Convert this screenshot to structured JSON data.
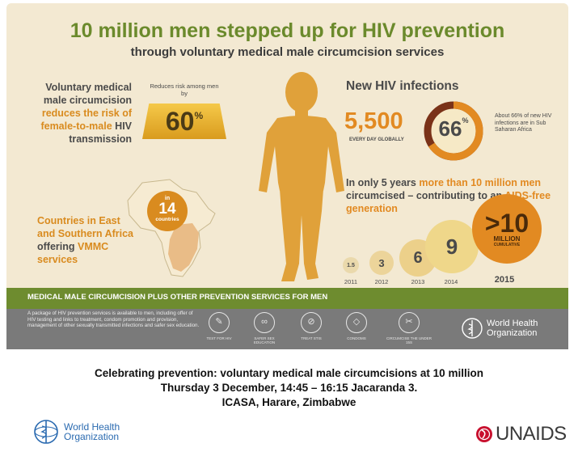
{
  "infographic": {
    "title": "10 million men stepped up for HIV prevention",
    "subtitle": "through voluntary medical male circumcision services",
    "risk": {
      "text_a": "Voluntary medical male circumcision ",
      "text_b": "reduces the risk of female-to-male",
      "text_c": " HIV transmission",
      "caption": "Reduces risk among men by",
      "value": "60",
      "unit": "%"
    },
    "new_hiv": {
      "heading": "New HIV infections",
      "count": "5,500",
      "count_label": "EVERY DAY GLOBALLY",
      "share": "66",
      "share_unit": "%",
      "share_fraction": 0.66,
      "share_note": "About 66% of new HIV infections are in Sub Saharan Africa"
    },
    "progress": {
      "text_a": "In only 5 years ",
      "text_b": "more than 10 million men",
      "text_c": " circumcised – contributing to an ",
      "text_d": "AIDS-free generation",
      "bubbles": [
        {
          "value": "1.5",
          "year": "2011"
        },
        {
          "value": "3",
          "year": "2012"
        },
        {
          "value": "6",
          "year": "2013"
        },
        {
          "value": "9",
          "year": "2014"
        },
        {
          "value": ">10",
          "sub": "MILLION",
          "sub2": "CUMULATIVE",
          "year": "2015"
        }
      ]
    },
    "countries": {
      "text_a": "Countries in East and Southern Africa ",
      "text_b": "offering",
      "text_c": " VMMC services",
      "badge_prefix": "in",
      "badge_number": "14",
      "badge_label": "countries"
    },
    "bar_title": "MEDICAL MALE CIRCUMCISION PLUS OTHER PREVENTION SERVICES FOR MEN",
    "package_text": "A package of HIV prevention services is available to men, including offer of HIV testing and links to treatment, condom promotion and provision, management of other sexually transmitted infections and safer sex education.",
    "services": [
      {
        "label": "Test for HIV",
        "icon": "test-icon",
        "glyph": "✎"
      },
      {
        "label": "Safer sex education",
        "icon": "link-icon",
        "glyph": "∞"
      },
      {
        "label": "Treat STIs",
        "icon": "pill-icon",
        "glyph": "⊘"
      },
      {
        "label": "Condoms",
        "icon": "condom-icon",
        "glyph": "◇"
      },
      {
        "label": "Circumcise the under 15s",
        "icon": "circumcise-icon",
        "glyph": "✂"
      }
    ],
    "who_logo": "World Health Organization"
  },
  "caption": {
    "line1": "Celebrating prevention: voluntary medical male circumcisions at 10 million",
    "line2": "Thursday 3 December, 14:45 – 16:15 Jacaranda 3.",
    "line3": "ICASA, Harare, Zimbabwe"
  },
  "footer": {
    "who_line1": "World Health",
    "who_line2": "Organization",
    "unaids": "UNAIDS"
  }
}
